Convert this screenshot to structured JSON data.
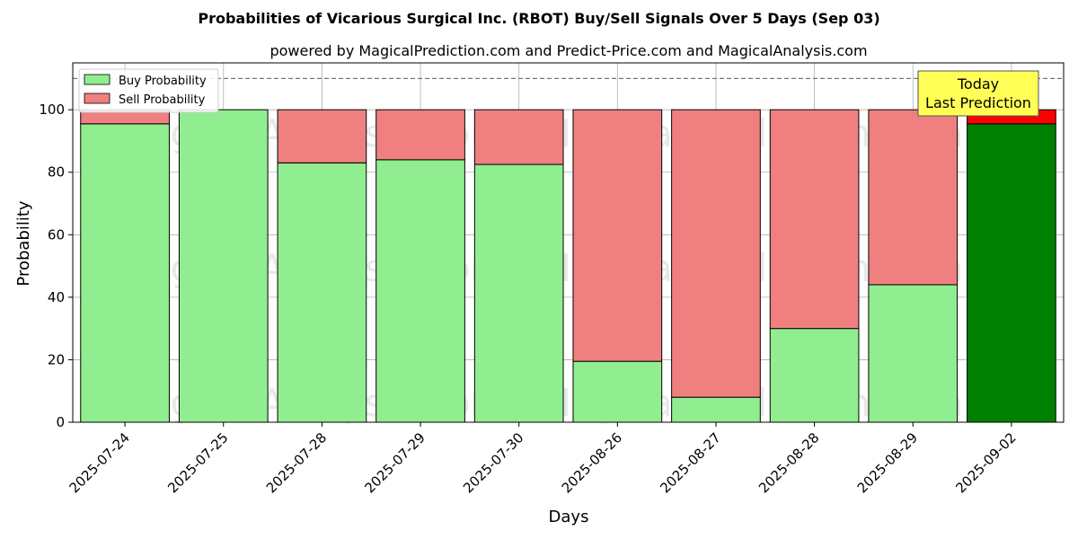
{
  "chart_data": {
    "type": "bar",
    "stacked": true,
    "title": "Probabilities of Vicarious Surgical Inc. (RBOT) Buy/Sell Signals Over 5 Days (Sep 03)",
    "subtitle": "powered by MagicalPrediction.com and Predict-Price.com and MagicalAnalysis.com",
    "xlabel": "Days",
    "ylabel": "Probability",
    "ylim": [
      0,
      115
    ],
    "yticks": [
      0,
      20,
      40,
      60,
      80,
      100
    ],
    "grid": true,
    "legend_position": "top-left",
    "reference_line": 110,
    "categories": [
      "2025-07-24",
      "2025-07-25",
      "2025-07-28",
      "2025-07-29",
      "2025-07-30",
      "2025-08-26",
      "2025-08-27",
      "2025-08-28",
      "2025-08-29",
      "2025-09-02"
    ],
    "series": [
      {
        "name": "Buy Probability",
        "values": [
          95.5,
          100,
          83,
          84,
          82.5,
          19.5,
          8,
          30,
          44,
          95.5
        ]
      },
      {
        "name": "Sell Probability",
        "values": [
          4.5,
          0,
          17,
          16,
          17.5,
          80.5,
          92,
          70,
          56,
          4.5
        ]
      }
    ],
    "highlight_index": 9,
    "annotation": {
      "line1": "Today",
      "line2": "Last Prediction"
    },
    "watermarks": [
      "MagicalAnalysis.com",
      "MagicalPrediction.com"
    ]
  },
  "colors": {
    "buy": "#90ee90",
    "sell": "#f08080",
    "buy_highlight": "#008000",
    "sell_highlight": "#ff0000",
    "annotation_bg": "#ffff55",
    "grid": "#b0b0b0"
  }
}
